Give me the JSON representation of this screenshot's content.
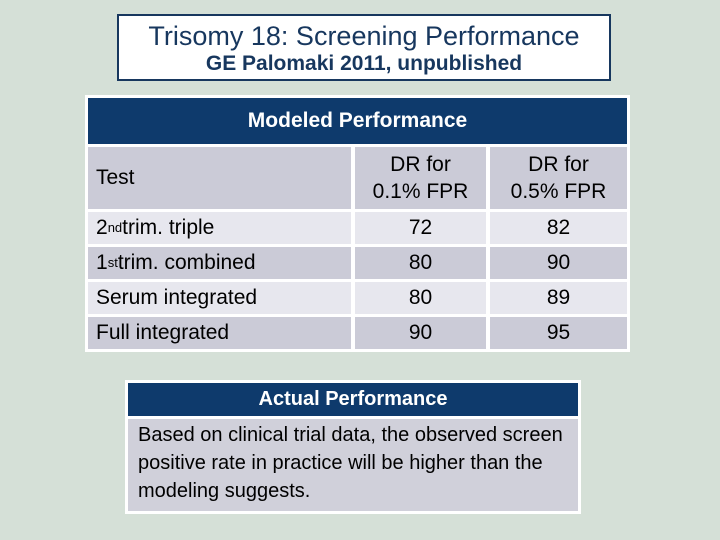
{
  "slide": {
    "title": "Trisomy 18: Screening Performance",
    "subtitle": "GE Palomaki 2011, unpublished"
  },
  "modeled": {
    "header": "Modeled Performance",
    "columns": {
      "test": "Test",
      "dr01_line1": "DR for",
      "dr01_line2": "0.1% FPR",
      "dr05_line1": "DR for",
      "dr05_line2": "0.5% FPR"
    },
    "rows": [
      {
        "num": "2",
        "ord": "nd",
        "rest": " trim. triple",
        "dr01": "72",
        "dr05": "82"
      },
      {
        "num": "1",
        "ord": "st",
        "rest": " trim. combined",
        "dr01": "80",
        "dr05": "90"
      },
      {
        "num": "",
        "ord": "",
        "rest": "Serum integrated",
        "dr01": "80",
        "dr05": "89"
      },
      {
        "num": "",
        "ord": "",
        "rest": "Full integrated",
        "dr01": "90",
        "dr05": "95"
      }
    ]
  },
  "actual": {
    "header": "Actual Performance",
    "body": "Based on clinical trial data, the observed screen positive rate in practice will be higher than the modeling suggests."
  },
  "colors": {
    "background": "#d5e0d7",
    "navy": "#0e3a6c",
    "title_text": "#17375e",
    "row_dark": "#cbcbd7",
    "row_light": "#e7e7ee",
    "actual_body_bg": "#d0d0da"
  }
}
